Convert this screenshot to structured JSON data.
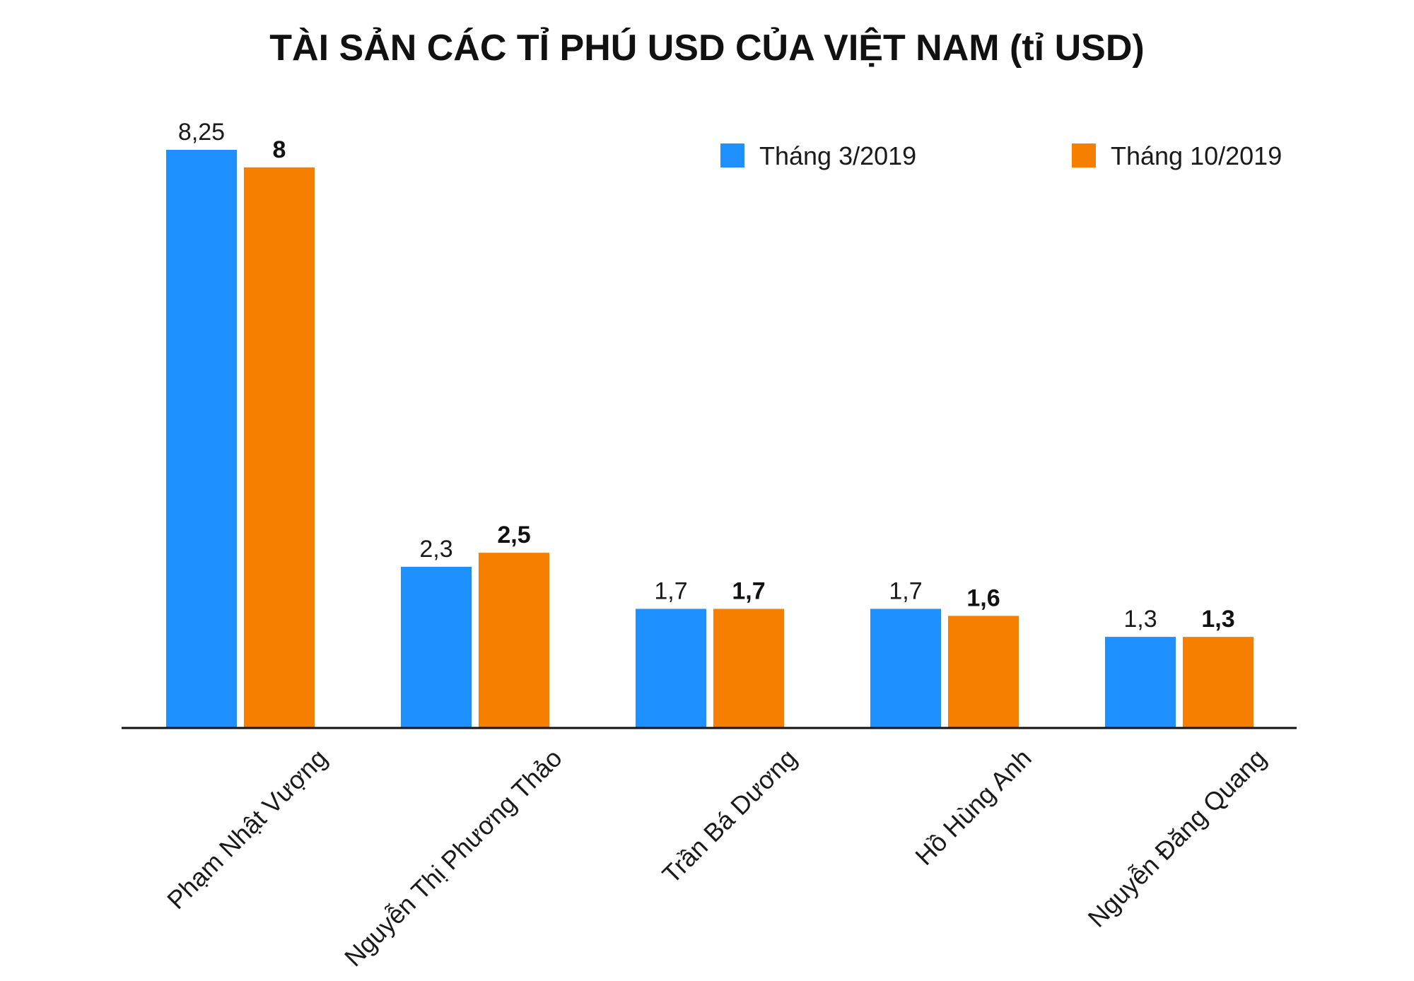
{
  "chart_data": {
    "type": "bar",
    "title": "TÀI SẢN CÁC TỈ PHÚ USD CỦA VIỆT NAM (tỉ USD)",
    "categories": [
      "Phạm Nhật Vượng",
      "Nguyễn Thị Phương Thảo",
      "Trần Bá Dương",
      "Hồ Hùng Anh",
      "Nguyễn Đăng Quang"
    ],
    "series": [
      {
        "name": "Tháng 3/2019",
        "values": [
          8.25,
          2.3,
          1.7,
          1.7,
          1.3
        ],
        "labels": [
          "8,25",
          "2,3",
          "1,7",
          "1,7",
          "1,3"
        ],
        "color": "#1e90ff"
      },
      {
        "name": "Tháng 10/2019",
        "values": [
          8,
          2.5,
          1.7,
          1.6,
          1.3
        ],
        "labels": [
          "8",
          "2,5",
          "1,7",
          "1,6",
          "1,3"
        ],
        "color": "#f77f00"
      }
    ],
    "ylim": [
      0,
      8.25
    ],
    "grid": false,
    "legend": "top-right"
  }
}
